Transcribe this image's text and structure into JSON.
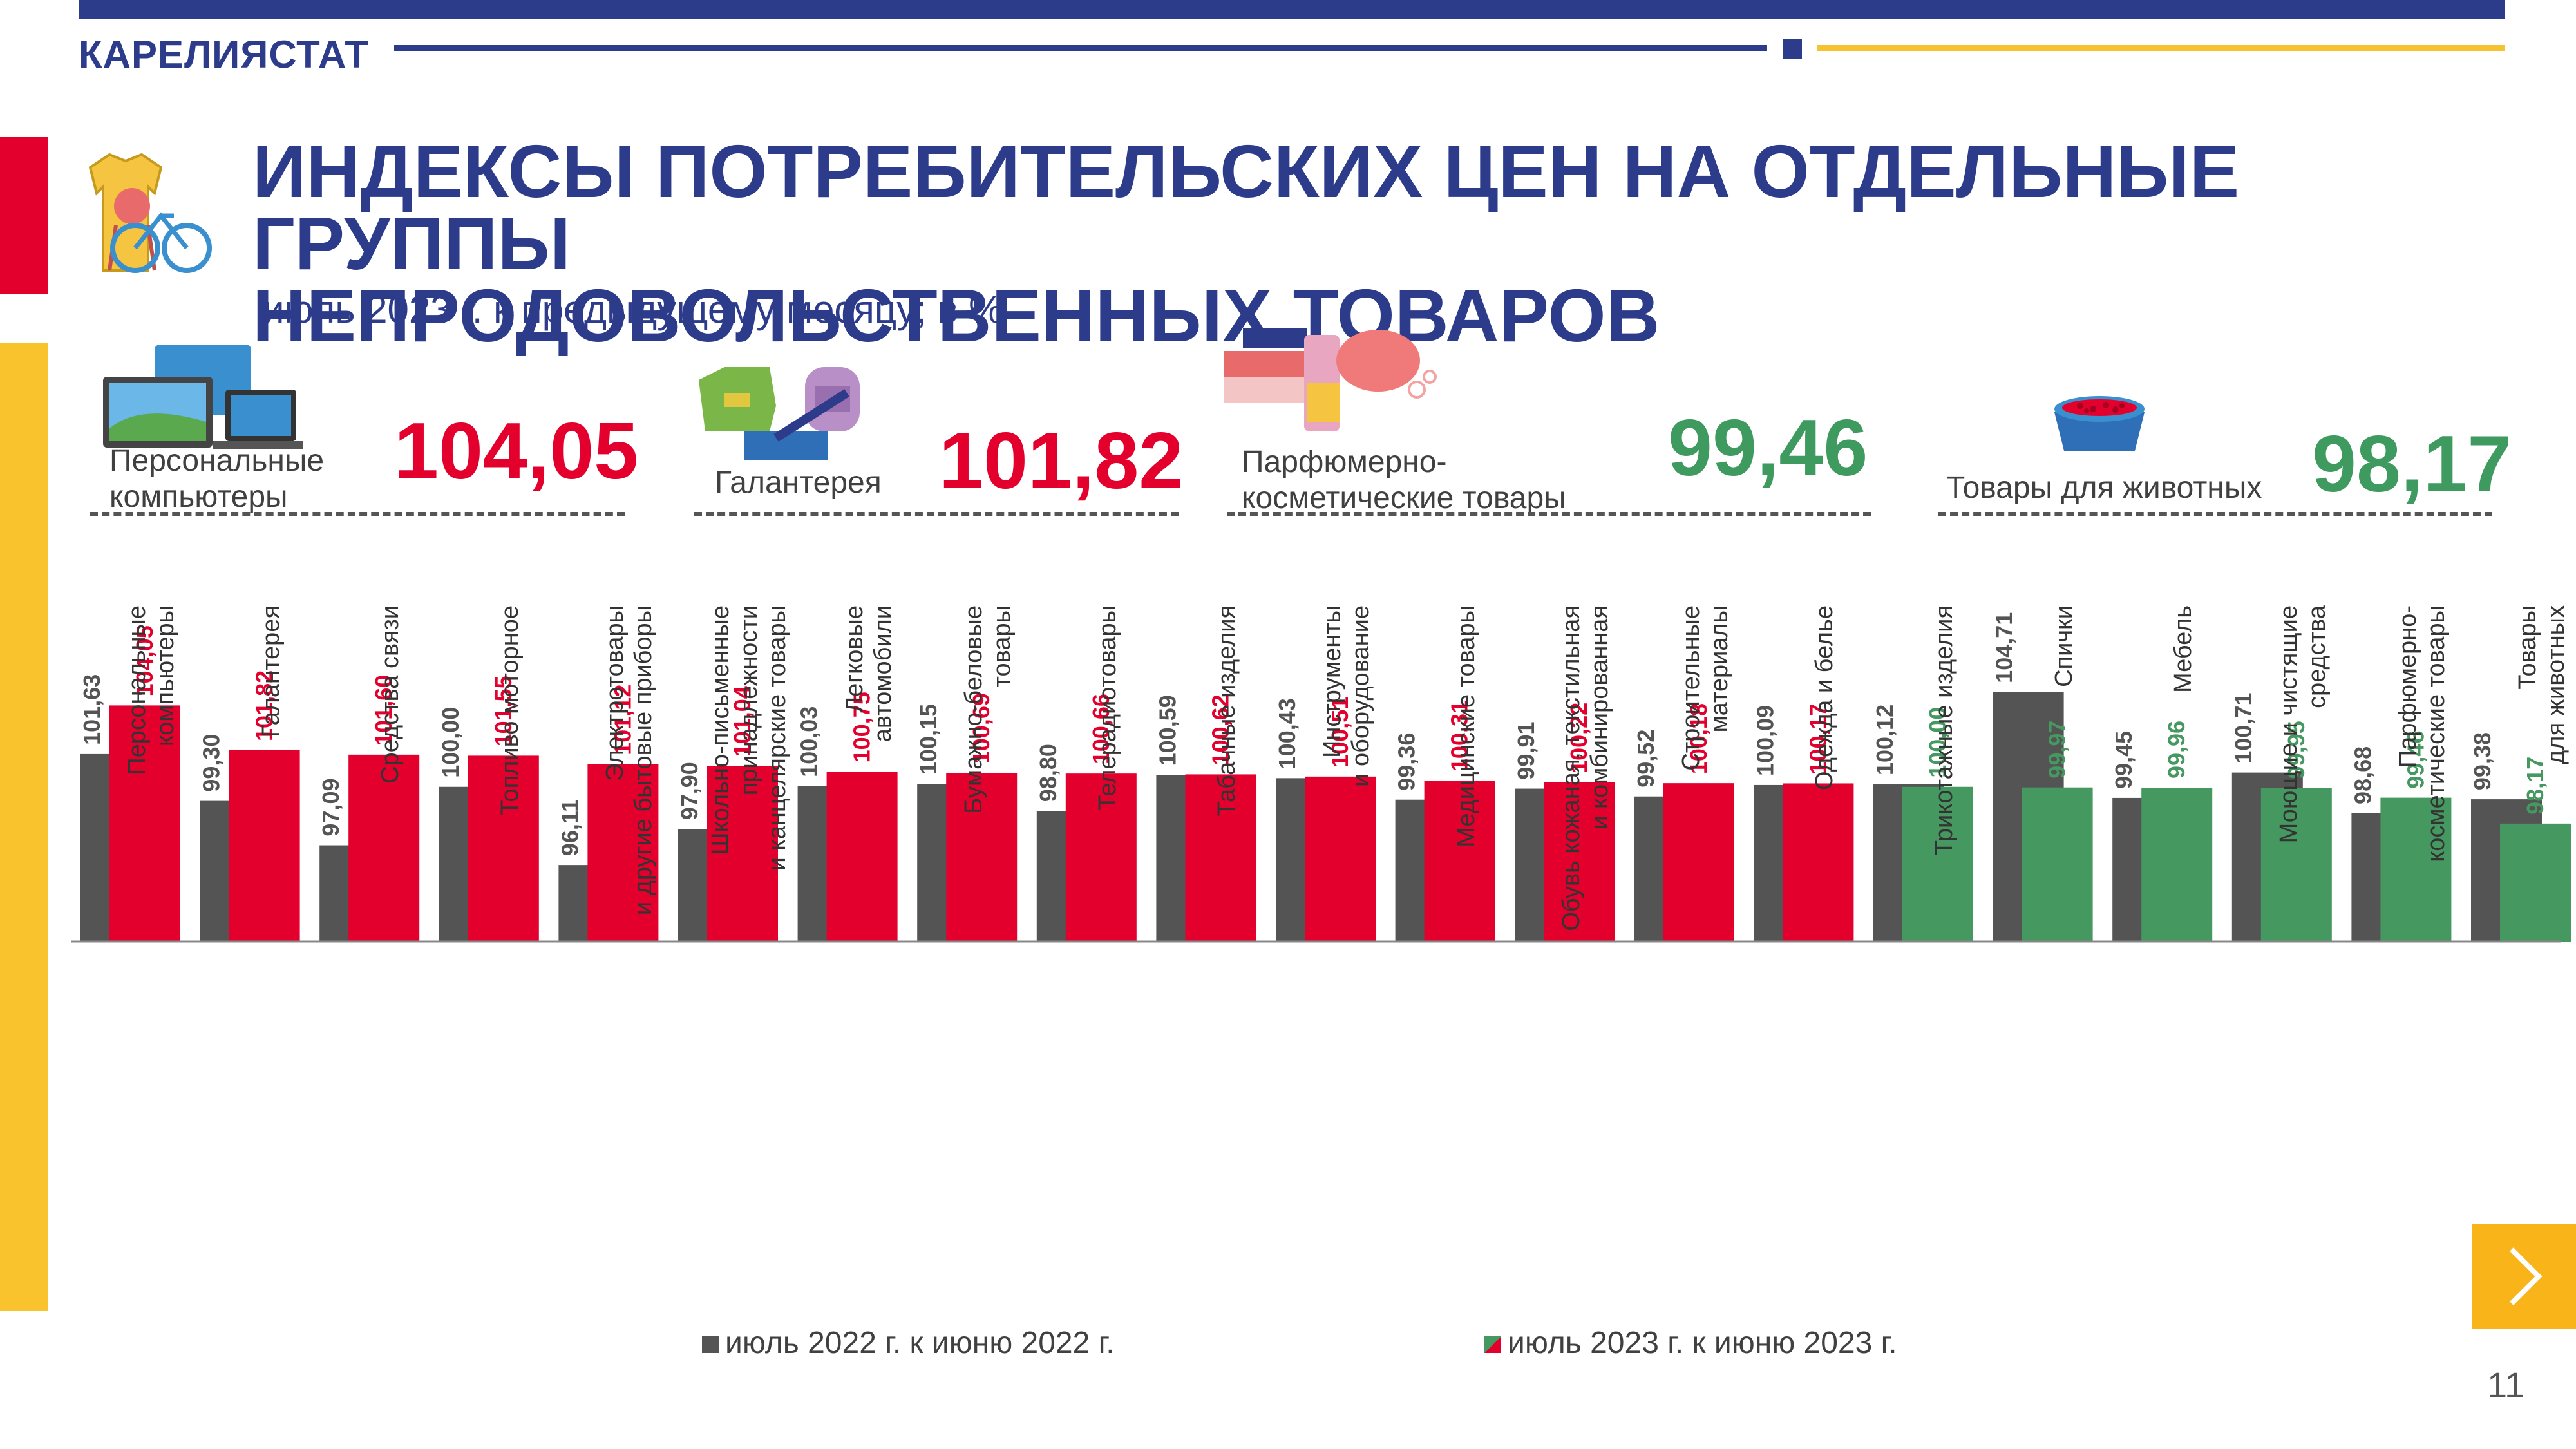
{
  "header": {
    "org": "КАРЕЛИЯСТАТ"
  },
  "title": {
    "line1": "ИНДЕКСЫ ПОТРЕБИТЕЛЬСКИХ ЦЕН НА ОТДЕЛЬНЫЕ ГРУППЫ",
    "line2": "НЕПРОДОВОЛЬСТВЕННЫХ ТОВАРОВ"
  },
  "subtitle": "июль 2023 г. к предыдущему месяцу; в %",
  "highlights": [
    {
      "label1": "Персональные",
      "label2": "компьютеры",
      "value": "104,05",
      "color": "#e3002d",
      "icon": "computer-icon"
    },
    {
      "label1": "Галантерея",
      "label2": "",
      "value": "101,82",
      "color": "#e3002d",
      "icon": "bags-icon"
    },
    {
      "label1": "Парфюмерно-",
      "label2": "косметические товары",
      "value": "99,46",
      "color": "#3f9a60",
      "icon": "cosmetics-icon"
    },
    {
      "label1": "Товары для животных",
      "label2": "",
      "value": "98,17",
      "color": "#3f9a60",
      "icon": "pet-bowl-icon"
    }
  ],
  "colors": {
    "gray": "#545454",
    "red": "#e3002d",
    "green": "#45985f",
    "navy": "#2c3b8a",
    "gold": "#f8c32d"
  },
  "chart_data": {
    "type": "bar",
    "categories": [
      "Персональные\nкомпьютеры",
      "Галантерея",
      "Средства связи",
      "Топливо моторное",
      "Электротовары\nи другие бытовые приборы",
      "Школьно-письменные\nпринадлежности\nи канцелярские товары",
      "Легковые\nавтомобили",
      "Бумажно-беловые\nтовары",
      "Телерадиотовары",
      "Табачные изделия",
      "Инструменты\nи оборудование",
      "Медицинские товары",
      "Обувь кожаная, текстильная\nи комбинированная",
      "Строительные\nматериалы",
      "Одежда и белье",
      "Трикотажные изделия",
      "Спички",
      "Мебель",
      "Моющие и чистящие\nсредства",
      "Парфюмерно-\nкосметические товары",
      "Товары\nдля животных"
    ],
    "series": [
      {
        "name": "июль 2022 г.  к июню 2022 г.",
        "values": [
          101.63,
          99.3,
          97.09,
          100.0,
          96.11,
          97.9,
          100.03,
          100.15,
          98.8,
          100.59,
          100.43,
          99.36,
          99.91,
          99.52,
          100.09,
          100.12,
          104.71,
          99.45,
          100.71,
          98.68,
          99.38
        ],
        "labels": [
          "101,63",
          "99,30",
          "97,09",
          "100,00",
          "96,11",
          "97,90",
          "100,03",
          "100,15",
          "98,80",
          "100,59",
          "100,43",
          "99,36",
          "99,91",
          "99,52",
          "100,09",
          "100,12",
          "104,71",
          "99,45",
          "100,71",
          "98,68",
          "99,38"
        ]
      },
      {
        "name": "июль 2023 г.  к июню 2023 г.",
        "values": [
          104.05,
          101.82,
          101.6,
          101.55,
          101.12,
          101.04,
          100.75,
          100.69,
          100.66,
          100.62,
          100.51,
          100.31,
          100.22,
          100.18,
          100.17,
          100.0,
          99.97,
          99.96,
          99.95,
          99.46,
          98.17
        ],
        "labels": [
          "104,05",
          "101,82",
          "101,60",
          "101,55",
          "101,12",
          "101,04",
          "100,75",
          "100,69",
          "100,66",
          "100,62",
          "100,51",
          "100,31",
          "100,22",
          "100,18",
          "100,17",
          "100,00",
          "99,97",
          "99,96",
          "99,95",
          "99,46",
          "98,17"
        ]
      }
    ],
    "xlabel": "",
    "ylabel": ""
  },
  "legend": {
    "item1": "июль 2022 г.  к июню 2022 г.",
    "item2": "июль 2023 г.  к июню 2023 г."
  },
  "nav": {
    "next_icon": "chevron-right-icon"
  },
  "page_number": "11"
}
